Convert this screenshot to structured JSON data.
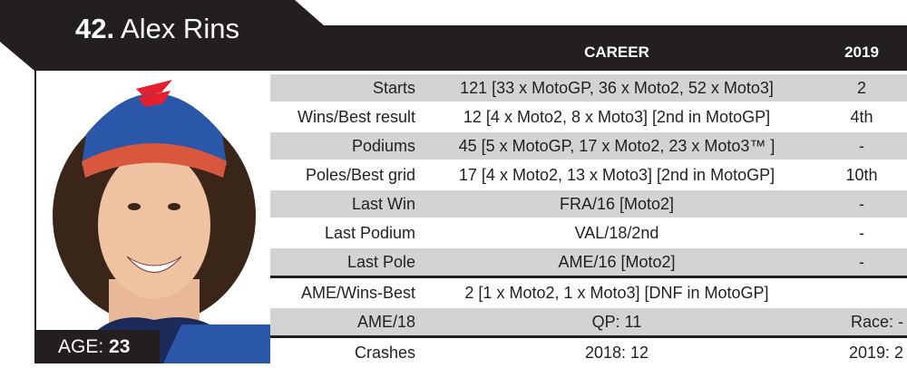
{
  "rider": {
    "number": "42.",
    "name": "Alex Rins",
    "age_label": "AGE:",
    "age": "23"
  },
  "headers": {
    "career": "CAREER",
    "season": "2019"
  },
  "colors": {
    "banner": "#231f20",
    "row_alt": "#d1d3d4",
    "cap_blue": "#2b57a8",
    "logo_red": "#e4202e"
  },
  "rows": [
    {
      "label": "Starts",
      "career": "121 [33 x MotoGP, 36 x Moto2, 52 x Moto3]",
      "season": "2"
    },
    {
      "label": "Wins/Best result",
      "career": "12 [4 x Moto2, 8 x Moto3] [2nd in MotoGP]",
      "season": "4th"
    },
    {
      "label": "Podiums",
      "career": "45 [5 x MotoGP, 17 x Moto2, 23 x Moto3™ ]",
      "season": "-"
    },
    {
      "label": "Poles/Best grid",
      "career": "17 [4 x Moto2, 13 x Moto3] [2nd in MotoGP]",
      "season": "10th"
    },
    {
      "label": "Last Win",
      "career": "FRA/16 [Moto2]",
      "season": "-"
    },
    {
      "label": "Last Podium",
      "career": "VAL/18/2nd",
      "season": "-"
    },
    {
      "label": "Last Pole",
      "career": "AME/16 [Moto2]",
      "season": "-"
    },
    {
      "label": "AME/Wins-Best",
      "career": "2 [1 x Moto2, 1 x Moto3]  [DNF in MotoGP]",
      "season": ""
    },
    {
      "label": "AME/18",
      "career": "QP: 11",
      "season": "Race: -"
    },
    {
      "label": "Crashes",
      "career": "2018: 12",
      "season": "2019: 2"
    }
  ]
}
